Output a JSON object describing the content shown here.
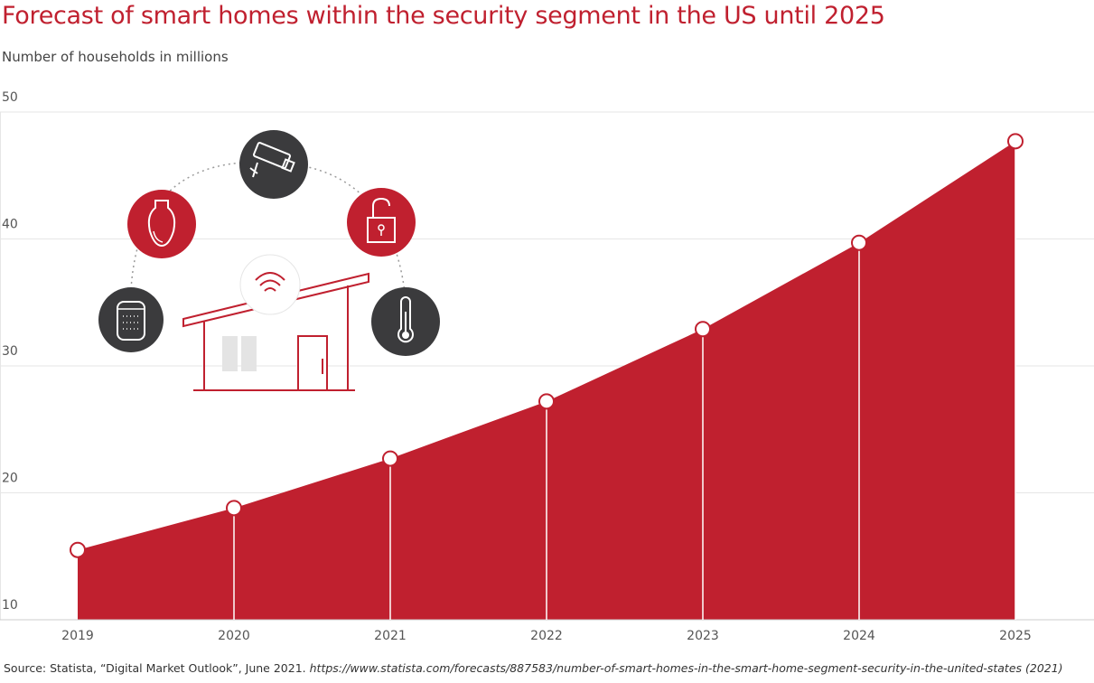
{
  "title": "Forecast of smart homes within the security segment in the US until 2025",
  "subtitle": "Number of households in millions",
  "source": {
    "prefix": "Source: Statista, “Digital Market Outlook”, June 2021.",
    "url": "https://www.statista.com/forecasts/887583/number-of-smart-homes-in-the-smart-home-segment-security-in-the-united-states (2021)"
  },
  "colors": {
    "accent": "#c0202f",
    "dark": "#3b3b3d",
    "grid": "#e6e6e6"
  },
  "icons": [
    "light-bulb-icon",
    "security-camera-icon",
    "padlock-icon",
    "smart-speaker-icon",
    "thermometer-icon",
    "wifi-icon",
    "house-icon"
  ],
  "chart_data": {
    "type": "area",
    "categories": [
      "2019",
      "2020",
      "2021",
      "2022",
      "2023",
      "2024",
      "2025"
    ],
    "series": [
      {
        "values": [
          15.5,
          18.8,
          22.7,
          27.2,
          32.9,
          39.7,
          47.7
        ]
      }
    ],
    "yticks": [
      "10",
      "20",
      "30",
      "40",
      "50"
    ],
    "ylim": [
      10,
      50
    ],
    "grid": true,
    "legend": "none",
    "xlabel": "",
    "ylabel": ""
  }
}
